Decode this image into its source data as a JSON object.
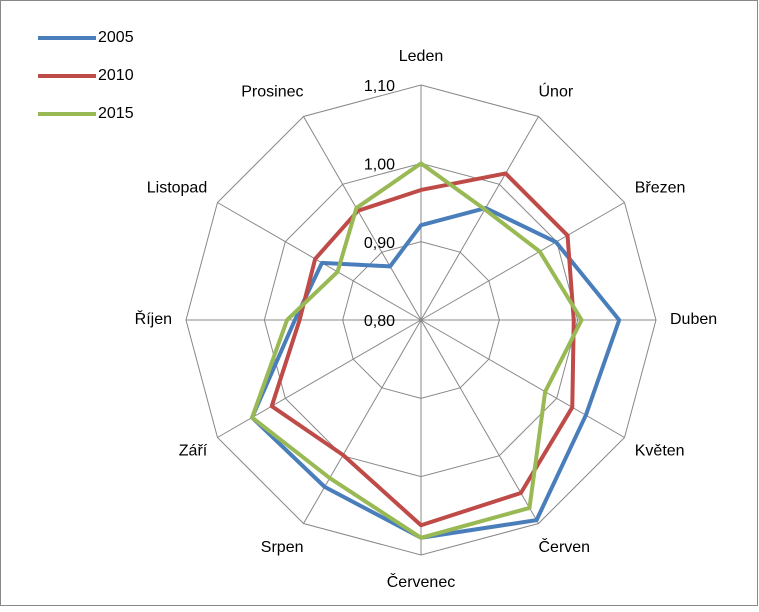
{
  "chart_data": {
    "type": "radar",
    "categories": [
      "Leden",
      "Únor",
      "Březen",
      "Duben",
      "Květen",
      "Červen",
      "Červenec",
      "Srpen",
      "Září",
      "Říjen",
      "Listopad",
      "Prosinec"
    ],
    "series": [
      {
        "name": "2005",
        "color": "#4a7ebb",
        "values": [
          0.921,
          0.965,
          0.999,
          1.053,
          1.043,
          1.095,
          1.078,
          1.046,
          1.049,
          0.961,
          0.946,
          0.879
        ]
      },
      {
        "name": "2010",
        "color": "#be4b48",
        "values": [
          0.966,
          1.016,
          1.016,
          0.995,
          1.023,
          1.055,
          1.062,
          0.999,
          1.02,
          0.955,
          0.956,
          0.961
        ]
      },
      {
        "name": "2015",
        "color": "#98b954",
        "values": [
          1.0,
          0.963,
          0.975,
          1.005,
          0.983,
          1.077,
          1.078,
          1.033,
          1.049,
          0.971,
          0.923,
          0.965
        ]
      }
    ],
    "ylim": [
      0.8,
      1.1
    ],
    "yticks": [
      {
        "value": 0.8,
        "label": "0,80"
      },
      {
        "value": 0.9,
        "label": "0,90"
      },
      {
        "value": 1.0,
        "label": "1,00"
      },
      {
        "value": 1.1,
        "label": "1,10"
      }
    ],
    "grid": true,
    "legend": "top-left"
  }
}
